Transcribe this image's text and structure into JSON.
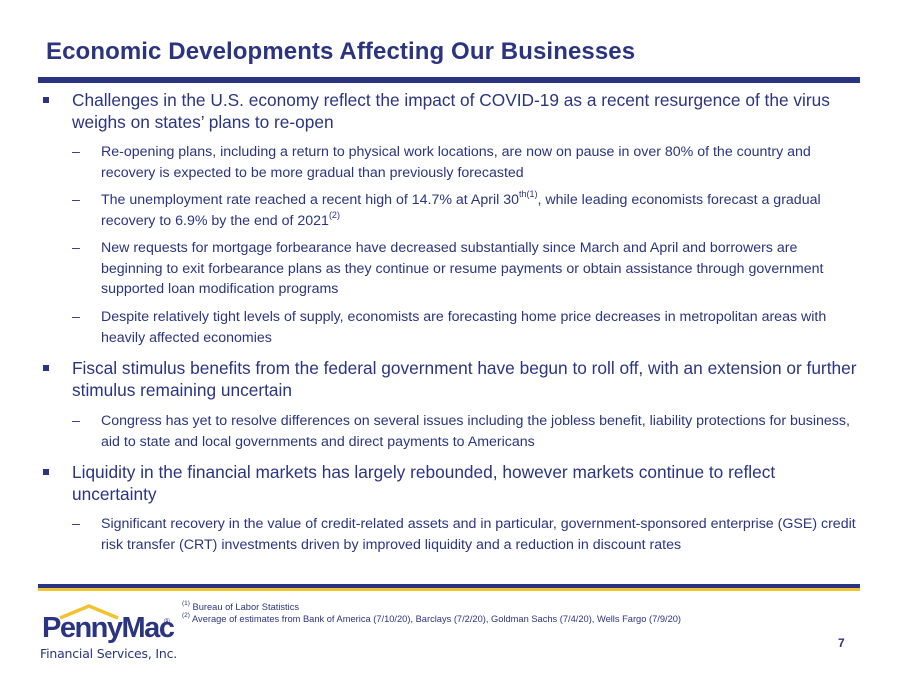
{
  "slide": {
    "title": "Economic Developments Affecting Our Businesses",
    "page_number": "7"
  },
  "bullets": [
    {
      "text": "Challenges in the U.S. economy reflect the impact of COVID-19 as a recent resurgence of the virus weighs on states’ plans to re-open",
      "subs": [
        {
          "text": "Re-opening plans, including a return to physical work locations, are now on pause in over 80% of the country and recovery is expected to be more gradual than previously forecasted"
        },
        {
          "text_a": "The unemployment rate reached a recent high of 14.7% at April 30",
          "sup_a": "th(1)",
          "text_b": ", while leading economists forecast a gradual recovery to 6.9% by the end of 2021",
          "sup_b": "(2)"
        },
        {
          "text": "New requests for mortgage forbearance have decreased substantially since March and April and borrowers are beginning to exit forbearance plans as they continue or resume payments or obtain assistance through government supported loan modification programs"
        },
        {
          "text": "Despite relatively tight levels of supply, economists are forecasting home price decreases in metropolitan areas with heavily affected economies"
        }
      ]
    },
    {
      "text": "Fiscal stimulus benefits from the federal government have begun to roll off, with an extension or further stimulus remaining uncertain",
      "subs": [
        {
          "text": "Congress has yet to resolve differences on several issues including the jobless benefit, liability protections for business, aid to state and local governments and direct payments to Americans"
        }
      ]
    },
    {
      "text": "Liquidity in the financial markets has largely rebounded, however markets continue to reflect uncertainty",
      "subs": [
        {
          "text": "Significant recovery in the value of credit-related assets and in particular, government-sponsored enterprise (GSE) credit risk transfer (CRT) investments driven by improved liquidity and a reduction in discount rates"
        }
      ]
    }
  ],
  "sub_marker": "–",
  "footnotes": [
    {
      "marker": "(1)",
      "text": " Bureau of Labor Statistics"
    },
    {
      "marker": "(2)",
      "text": " Average of estimates from Bank of America (7/10/20), Barclays (7/2/20), Goldman Sachs (7/4/20), Wells Fargo (7/9/20)"
    }
  ],
  "logo": {
    "wordmark": "PennyMac",
    "registered": "®",
    "subtitle": "Financial Services, Inc."
  },
  "colors": {
    "navy": "#2b3481",
    "gold": "#f2c230"
  }
}
